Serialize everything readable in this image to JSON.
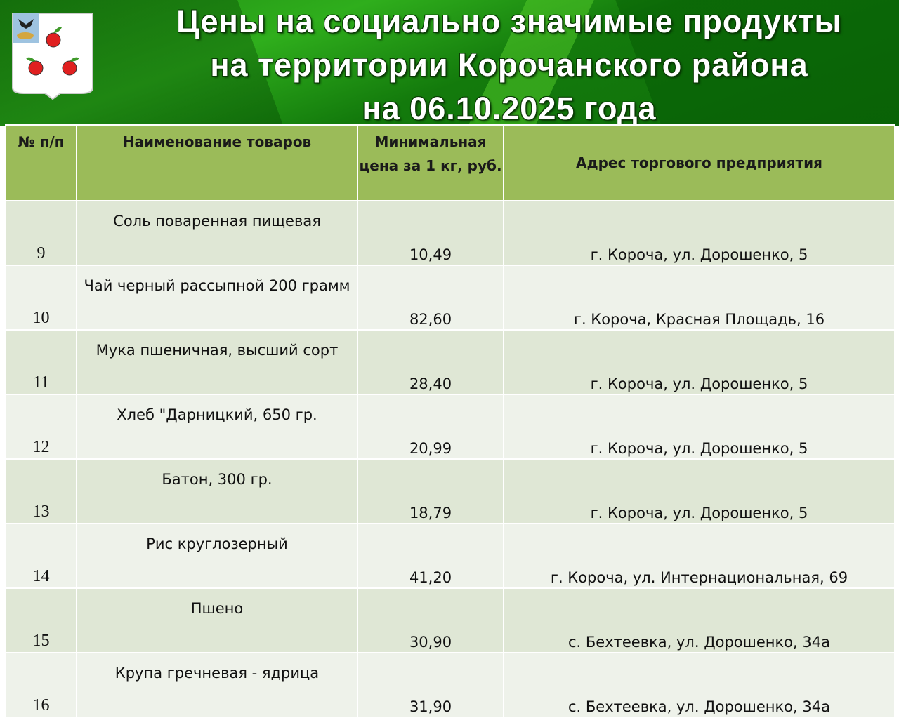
{
  "header": {
    "title_lines": [
      "Цены на социально значимые продукты",
      "на территории Корочанского района",
      "на 06.10.2025 года"
    ],
    "logo_alt": "Герб Корочанского района"
  },
  "table": {
    "columns": [
      "№ п/п",
      "Наименование товаров",
      "Минимальная цена за 1 кг, руб.",
      "Адрес торгового предприятия"
    ],
    "rows": [
      {
        "num": "9",
        "name": "Соль поваренная пищевая",
        "price": "10,49",
        "address": "г. Короча, ул. Дорошенко, 5"
      },
      {
        "num": "10",
        "name": "Чай черный рассыпной 200 грамм",
        "price": "82,60",
        "address": "г. Короча, Красная Площадь, 16"
      },
      {
        "num": "11",
        "name": "Мука пшеничная, высший сорт",
        "price": "28,40",
        "address": "г. Короча, ул. Дорошенко, 5"
      },
      {
        "num": "12",
        "name": "Хлеб \"Дарницкий, 650 гр.",
        "price": "20,99",
        "address": "г. Короча, ул. Дорошенко, 5"
      },
      {
        "num": "13",
        "name": "Батон, 300 гр.",
        "price": "18,79",
        "address": "г. Короча, ул. Дорошенко, 5"
      },
      {
        "num": "14",
        "name": "Рис круглозерный",
        "price": "41,20",
        "address": "г. Короча, ул. Интернациональная, 69"
      },
      {
        "num": "15",
        "name": "Пшено",
        "price": "30,90",
        "address": "с. Бехтеевка, ул. Дорошенко, 34а"
      },
      {
        "num": "16",
        "name": "Крупа гречневая - ядрица",
        "price": "31,90",
        "address": "с. Бехтеевка, ул. Дорошенко, 34а"
      }
    ]
  },
  "colors": {
    "header_bg": "#9bbb59",
    "row_odd": "#dfe7d5",
    "row_even": "#eef2ea",
    "banner": "#1f8a12"
  }
}
